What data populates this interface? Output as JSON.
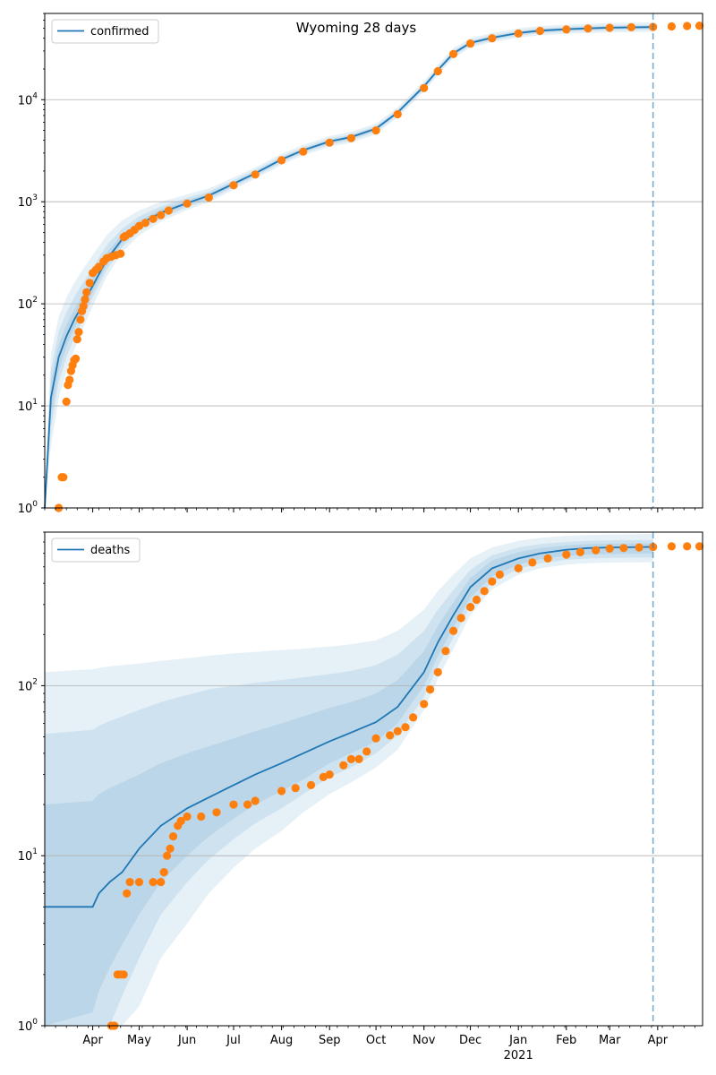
{
  "figure": {
    "title": "Wyoming 28 days"
  },
  "chart_data": [
    {
      "type": "line",
      "y_scale": "log",
      "ylim": [
        1,
        70000
      ],
      "xlim": [
        "2020-03-01",
        "2021-04-30"
      ],
      "y_tick_values": [
        1,
        10,
        100,
        1000,
        10000
      ],
      "y_tick_labels": [
        {
          "base": "10",
          "exp": "0"
        },
        {
          "base": "10",
          "exp": "1"
        },
        {
          "base": "10",
          "exp": "2"
        },
        {
          "base": "10",
          "exp": "3"
        },
        {
          "base": "10",
          "exp": "4"
        }
      ],
      "grid": "y-major",
      "legend_position": "top-left",
      "series_names": {
        "model": "confirmed"
      },
      "colors": {
        "model": "#1f77b4",
        "observed": "#ff7f0e",
        "band": "#1f77b4",
        "vline": "#1f77b4"
      },
      "vline_date": "2021-03-29",
      "model": {
        "x": [
          "2020-03-01",
          "2020-03-05",
          "2020-03-10",
          "2020-03-15",
          "2020-03-20",
          "2020-03-25",
          "2020-04-01",
          "2020-04-10",
          "2020-04-20",
          "2020-05-01",
          "2020-05-15",
          "2020-06-01",
          "2020-06-15",
          "2020-07-01",
          "2020-07-15",
          "2020-08-01",
          "2020-08-15",
          "2020-09-01",
          "2020-09-15",
          "2020-10-01",
          "2020-10-15",
          "2020-11-01",
          "2020-11-10",
          "2020-11-20",
          "2020-12-01",
          "2020-12-15",
          "2021-01-01",
          "2021-01-15",
          "2021-02-01",
          "2021-02-15",
          "2021-03-01",
          "2021-03-29"
        ],
        "y": [
          1,
          12,
          30,
          48,
          70,
          95,
          150,
          270,
          430,
          600,
          780,
          970,
          1150,
          1500,
          1900,
          2600,
          3200,
          3900,
          4300,
          5200,
          7500,
          13500,
          19500,
          28500,
          36000,
          40500,
          45000,
          47500,
          49000,
          50000,
          50800,
          51500
        ]
      },
      "bands": [
        {
          "lo": [
            1,
            4,
            12,
            22,
            35,
            55,
            95,
            185,
            320,
            470,
            640,
            830,
            990,
            1320,
            1680,
            2300,
            2850,
            3450,
            3800,
            4600,
            6700,
            12000,
            17500,
            25500,
            32500,
            36500,
            40500,
            42800,
            44100,
            45000,
            45700,
            46300
          ],
          "hi": [
            1.4,
            32,
            75,
            115,
            160,
            210,
            300,
            470,
            660,
            820,
            1000,
            1180,
            1350,
            1730,
            2170,
            2950,
            3600,
            4400,
            4850,
            5850,
            8400,
            15200,
            22000,
            32000,
            40000,
            45000,
            50000,
            52800,
            54400,
            55500,
            56400,
            57200
          ]
        },
        {
          "lo": [
            1,
            6,
            17,
            30,
            46,
            67,
            115,
            215,
            360,
            520,
            690,
            880,
            1050,
            1390,
            1770,
            2420,
            2990,
            3630,
            4000,
            4850,
            7050,
            12600,
            18300,
            26700,
            34000,
            38200,
            42500,
            44900,
            46300,
            47200,
            48000,
            48700
          ],
          "hi": [
            1.2,
            22,
            54,
            82,
            116,
            155,
            225,
            375,
            545,
            715,
            900,
            1090,
            1260,
            1620,
            2040,
            2780,
            3400,
            4150,
            4580,
            5530,
            7950,
            14300,
            20700,
            30200,
            38000,
            42800,
            47500,
            50100,
            51700,
            52700,
            53600,
            54300
          ]
        },
        {
          "lo": [
            1,
            8,
            22,
            38,
            57,
            80,
            130,
            240,
            390,
            555,
            730,
            920,
            1095,
            1440,
            1830,
            2510,
            3090,
            3760,
            4140,
            5020,
            7270,
            13000,
            18900,
            27600,
            34900,
            39300,
            43700,
            46100,
            47600,
            48500,
            49300,
            50000
          ],
          "hi": [
            1.1,
            17,
            40,
            62,
            88,
            118,
            180,
            315,
            480,
            650,
            840,
            1030,
            1205,
            1565,
            1975,
            2700,
            3310,
            4040,
            4460,
            5390,
            7760,
            14000,
            20200,
            29400,
            37100,
            41700,
            46300,
            48900,
            50400,
            51500,
            52300,
            53000
          ]
        }
      ],
      "observed": {
        "x": [
          "2020-03-10",
          "2020-03-12",
          "2020-03-13",
          "2020-03-15",
          "2020-03-16",
          "2020-03-17",
          "2020-03-18",
          "2020-03-19",
          "2020-03-20",
          "2020-03-21",
          "2020-03-22",
          "2020-03-23",
          "2020-03-24",
          "2020-03-25",
          "2020-03-26",
          "2020-03-27",
          "2020-03-28",
          "2020-03-30",
          "2020-04-01",
          "2020-04-03",
          "2020-04-05",
          "2020-04-08",
          "2020-04-10",
          "2020-04-13",
          "2020-04-16",
          "2020-04-19",
          "2020-04-21",
          "2020-04-22",
          "2020-04-25",
          "2020-04-28",
          "2020-05-01",
          "2020-05-05",
          "2020-05-10",
          "2020-05-15",
          "2020-05-20",
          "2020-06-01",
          "2020-06-15",
          "2020-07-01",
          "2020-07-15",
          "2020-08-01",
          "2020-08-15",
          "2020-09-01",
          "2020-09-15",
          "2020-10-01",
          "2020-10-15",
          "2020-11-01",
          "2020-11-10",
          "2020-11-20",
          "2020-12-01",
          "2020-12-15",
          "2021-01-01",
          "2021-01-15",
          "2021-02-01",
          "2021-02-15",
          "2021-03-01",
          "2021-03-15",
          "2021-03-29",
          "2021-04-10",
          "2021-04-20",
          "2021-04-28"
        ],
        "y": [
          1,
          2,
          2,
          11,
          16,
          18,
          22,
          25,
          28,
          29,
          45,
          53,
          70,
          85,
          95,
          110,
          130,
          160,
          200,
          215,
          230,
          260,
          280,
          290,
          300,
          310,
          450,
          460,
          490,
          530,
          580,
          620,
          680,
          740,
          820,
          960,
          1100,
          1450,
          1850,
          2550,
          3100,
          3800,
          4200,
          5000,
          7200,
          13000,
          19000,
          28000,
          35500,
          40000,
          44500,
          47200,
          48800,
          49800,
          50700,
          51300,
          51600,
          52200,
          52700,
          53100
        ]
      }
    },
    {
      "type": "line",
      "y_scale": "log",
      "ylim": [
        1,
        800
      ],
      "xlim": [
        "2020-03-01",
        "2021-04-30"
      ],
      "y_tick_values": [
        1,
        10,
        100
      ],
      "y_tick_labels": [
        {
          "base": "10",
          "exp": "0"
        },
        {
          "base": "10",
          "exp": "1"
        },
        {
          "base": "10",
          "exp": "2"
        }
      ],
      "x_tick_values": [
        "2020-04-01",
        "2020-05-01",
        "2020-06-01",
        "2020-07-01",
        "2020-08-01",
        "2020-09-01",
        "2020-10-01",
        "2020-11-01",
        "2020-12-01",
        "2021-01-01",
        "2021-02-01",
        "2021-03-01",
        "2021-04-01"
      ],
      "x_tick_labels": [
        "Apr",
        "May",
        "Jun",
        "Jul",
        "Aug",
        "Sep",
        "Oct",
        "Nov",
        "Dec",
        "Jan",
        "Feb",
        "Mar",
        "Apr"
      ],
      "x_year_label": {
        "date": "2021-01-01",
        "text": "2021"
      },
      "grid": "y-major",
      "legend_position": "top-left",
      "series_names": {
        "model": "deaths"
      },
      "colors": {
        "model": "#1f77b4",
        "observed": "#ff7f0e",
        "band": "#1f77b4",
        "vline": "#1f77b4"
      },
      "vline_date": "2021-03-29",
      "model": {
        "x": [
          "2020-03-01",
          "2020-04-01",
          "2020-04-05",
          "2020-04-12",
          "2020-04-20",
          "2020-05-01",
          "2020-05-15",
          "2020-06-01",
          "2020-06-15",
          "2020-07-01",
          "2020-07-15",
          "2020-08-01",
          "2020-08-15",
          "2020-09-01",
          "2020-09-15",
          "2020-10-01",
          "2020-10-15",
          "2020-11-01",
          "2020-11-10",
          "2020-11-20",
          "2020-12-01",
          "2020-12-15",
          "2021-01-01",
          "2021-01-15",
          "2021-02-01",
          "2021-02-15",
          "2021-03-01",
          "2021-03-29"
        ],
        "y": [
          5,
          5,
          6,
          7,
          8,
          11,
          15,
          19,
          22,
          26,
          30,
          35,
          40,
          47,
          53,
          61,
          75,
          120,
          180,
          260,
          380,
          490,
          560,
          600,
          630,
          645,
          650,
          655
        ]
      },
      "bands": [
        {
          "lo": [
            1,
            1,
            1,
            1,
            1,
            1.3,
            2.5,
            4,
            6,
            8.5,
            11,
            14,
            18,
            23,
            27,
            33,
            42,
            72,
            110,
            165,
            260,
            370,
            450,
            490,
            515,
            525,
            530,
            532
          ],
          "hi": [
            120,
            125,
            127,
            130,
            132,
            135,
            140,
            145,
            150,
            155,
            158,
            162,
            165,
            170,
            175,
            185,
            210,
            280,
            360,
            450,
            560,
            650,
            710,
            740,
            760,
            770,
            775,
            780
          ]
        },
        {
          "lo": [
            1,
            1,
            1,
            1,
            1.5,
            2.5,
            4.5,
            7,
            9.5,
            12.5,
            15.5,
            19,
            23,
            29,
            33,
            40,
            51,
            86,
            130,
            192,
            295,
            405,
            485,
            525,
            550,
            560,
            565,
            568
          ],
          "hi": [
            52,
            55,
            58,
            62,
            66,
            72,
            80,
            88,
            95,
            100,
            104,
            108,
            112,
            117,
            122,
            132,
            152,
            210,
            280,
            365,
            480,
            585,
            650,
            680,
            700,
            710,
            715,
            720
          ]
        },
        {
          "lo": [
            1,
            1.2,
            1.6,
            2.2,
            3,
            4.5,
            7,
            10,
            13,
            16.5,
            20,
            24,
            28,
            35,
            40,
            47,
            60,
            100,
            150,
            220,
            330,
            440,
            515,
            555,
            580,
            590,
            595,
            600
          ],
          "hi": [
            20,
            21,
            23,
            25,
            27,
            30,
            35,
            40,
            44,
            49,
            54,
            60,
            66,
            74,
            80,
            90,
            108,
            160,
            225,
            310,
            430,
            545,
            610,
            645,
            670,
            680,
            685,
            690
          ]
        }
      ],
      "observed": {
        "x": [
          "2020-04-13",
          "2020-04-15",
          "2020-04-17",
          "2020-04-19",
          "2020-04-21",
          "2020-04-23",
          "2020-04-25",
          "2020-05-01",
          "2020-05-10",
          "2020-05-15",
          "2020-05-17",
          "2020-05-19",
          "2020-05-21",
          "2020-05-23",
          "2020-05-26",
          "2020-05-28",
          "2020-06-01",
          "2020-06-10",
          "2020-06-20",
          "2020-07-01",
          "2020-07-10",
          "2020-07-15",
          "2020-08-01",
          "2020-08-10",
          "2020-08-20",
          "2020-08-28",
          "2020-09-01",
          "2020-09-10",
          "2020-09-15",
          "2020-09-20",
          "2020-09-25",
          "2020-10-01",
          "2020-10-10",
          "2020-10-15",
          "2020-10-20",
          "2020-10-25",
          "2020-11-01",
          "2020-11-05",
          "2020-11-10",
          "2020-11-15",
          "2020-11-20",
          "2020-11-25",
          "2020-12-01",
          "2020-12-05",
          "2020-12-10",
          "2020-12-15",
          "2020-12-20",
          "2021-01-01",
          "2021-01-10",
          "2021-01-20",
          "2021-02-01",
          "2021-02-10",
          "2021-02-20",
          "2021-03-01",
          "2021-03-10",
          "2021-03-20",
          "2021-03-29",
          "2021-04-10",
          "2021-04-20",
          "2021-04-28"
        ],
        "y": [
          1,
          1,
          2,
          2,
          2,
          6,
          7,
          7,
          7,
          7,
          8,
          10,
          11,
          13,
          15,
          16,
          17,
          17,
          18,
          20,
          20,
          21,
          24,
          25,
          26,
          29,
          30,
          34,
          37,
          37,
          41,
          49,
          51,
          54,
          57,
          65,
          78,
          95,
          120,
          160,
          210,
          250,
          290,
          320,
          360,
          410,
          450,
          490,
          530,
          560,
          590,
          610,
          625,
          640,
          645,
          650,
          655,
          660,
          660,
          660
        ]
      }
    }
  ]
}
